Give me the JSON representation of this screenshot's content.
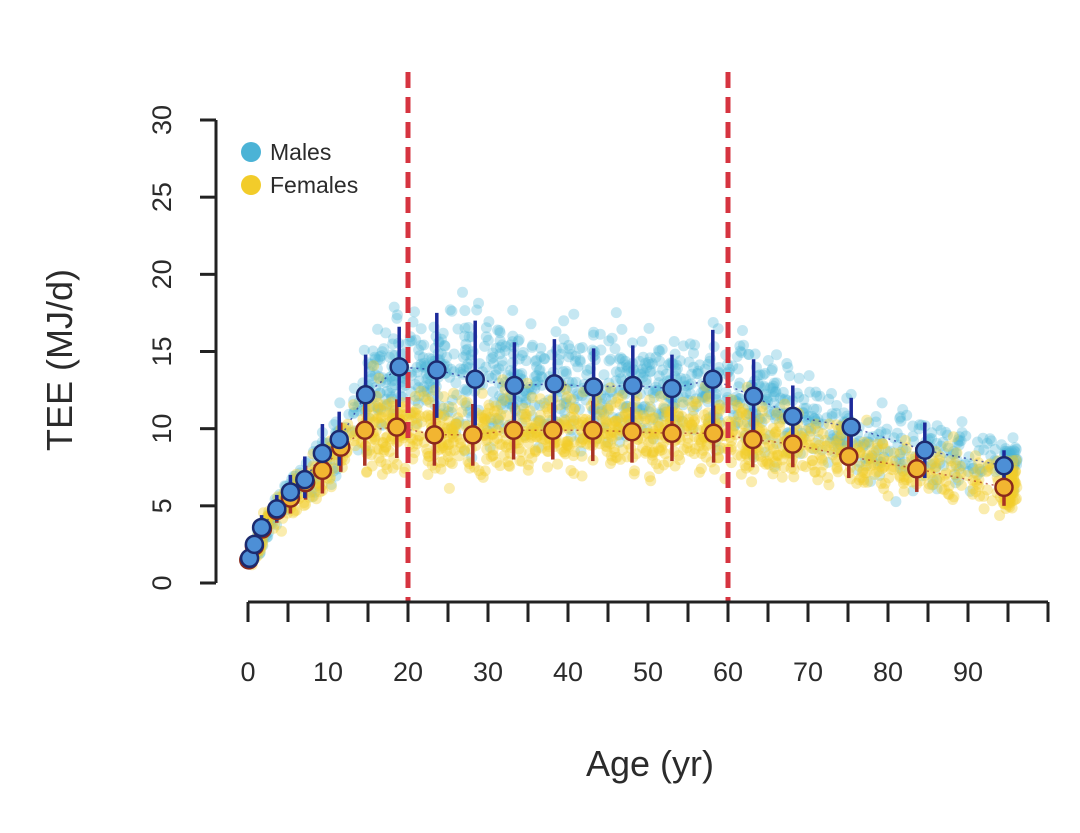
{
  "chart_data": {
    "type": "scatter",
    "xlabel": "Age (yr)",
    "ylabel": "TEE (MJ/d)",
    "xlim": [
      0,
      100
    ],
    "ylim": [
      0,
      30
    ],
    "x_ticks": [
      0,
      10,
      20,
      30,
      40,
      50,
      60,
      70,
      80,
      90
    ],
    "y_ticks": [
      0,
      5,
      10,
      15,
      20,
      25,
      30
    ],
    "x_minor_ticks": [
      0,
      5,
      10,
      15,
      20,
      25,
      30,
      35,
      40,
      45,
      50,
      55,
      60,
      65,
      70,
      75,
      80,
      85,
      90,
      95,
      100
    ],
    "reference_lines": [
      {
        "axis": "x",
        "value": 20,
        "style": "dashed",
        "color": "#d63440"
      },
      {
        "axis": "x",
        "value": 60,
        "style": "dashed",
        "color": "#d63440"
      }
    ],
    "legend": {
      "position": "top-left",
      "entries": [
        {
          "label": "Males",
          "color": "#4bb3d6"
        },
        {
          "label": "Females",
          "color": "#f2cc2a"
        }
      ]
    },
    "series": [
      {
        "name": "Males",
        "color": "#4bb3d6",
        "mean_marker_fill": "#4d8fd6",
        "mean_marker_stroke": "#1c2a6e",
        "errorbar_color": "#1c2a9a",
        "means": [
          {
            "x": 0.2,
            "y": 1.6,
            "low": 1.2,
            "high": 2.0
          },
          {
            "x": 0.8,
            "y": 2.5,
            "low": 2.0,
            "high": 3.0
          },
          {
            "x": 1.7,
            "y": 3.6,
            "low": 3.0,
            "high": 4.4
          },
          {
            "x": 3.6,
            "y": 4.8,
            "low": 4.0,
            "high": 5.7
          },
          {
            "x": 5.3,
            "y": 5.9,
            "low": 4.9,
            "high": 7.0
          },
          {
            "x": 7.1,
            "y": 6.7,
            "low": 5.5,
            "high": 8.2
          },
          {
            "x": 9.3,
            "y": 8.4,
            "low": 6.8,
            "high": 10.3
          },
          {
            "x": 11.4,
            "y": 9.3,
            "low": 7.6,
            "high": 11.1
          },
          {
            "x": 14.7,
            "y": 12.2,
            "low": 9.6,
            "high": 14.8
          },
          {
            "x": 18.9,
            "y": 14.0,
            "low": 11.4,
            "high": 16.6
          },
          {
            "x": 23.6,
            "y": 13.8,
            "low": 10.7,
            "high": 17.5
          },
          {
            "x": 28.4,
            "y": 13.2,
            "low": 10.2,
            "high": 17.0
          },
          {
            "x": 33.3,
            "y": 12.8,
            "low": 10.1,
            "high": 15.6
          },
          {
            "x": 38.3,
            "y": 12.9,
            "low": 10.1,
            "high": 15.8
          },
          {
            "x": 43.2,
            "y": 12.7,
            "low": 10.3,
            "high": 15.2
          },
          {
            "x": 48.1,
            "y": 12.8,
            "low": 10.4,
            "high": 15.4
          },
          {
            "x": 53.0,
            "y": 12.6,
            "low": 10.5,
            "high": 14.8
          },
          {
            "x": 58.1,
            "y": 13.2,
            "low": 10.1,
            "high": 16.4
          },
          {
            "x": 63.2,
            "y": 12.1,
            "low": 9.7,
            "high": 14.5
          },
          {
            "x": 68.1,
            "y": 10.8,
            "low": 8.9,
            "high": 12.8
          },
          {
            "x": 75.4,
            "y": 10.1,
            "low": 8.1,
            "high": 12.0
          },
          {
            "x": 84.6,
            "y": 8.6,
            "low": 6.8,
            "high": 10.4
          },
          {
            "x": 94.5,
            "y": 7.6,
            "low": 6.8,
            "high": 8.6
          }
        ]
      },
      {
        "name": "Females",
        "color": "#f2cc2a",
        "mean_marker_fill": "#f2b531",
        "mean_marker_stroke": "#8a2a1c",
        "errorbar_color": "#a83224",
        "means": [
          {
            "x": 0.1,
            "y": 1.5,
            "low": 1.1,
            "high": 1.9
          },
          {
            "x": 0.8,
            "y": 2.4,
            "low": 1.9,
            "high": 2.9
          },
          {
            "x": 1.8,
            "y": 3.5,
            "low": 2.9,
            "high": 4.2
          },
          {
            "x": 3.6,
            "y": 4.7,
            "low": 3.9,
            "high": 5.5
          },
          {
            "x": 5.3,
            "y": 5.5,
            "low": 4.5,
            "high": 6.4
          },
          {
            "x": 7.2,
            "y": 6.5,
            "low": 5.4,
            "high": 7.6
          },
          {
            "x": 9.3,
            "y": 7.3,
            "low": 5.8,
            "high": 8.8
          },
          {
            "x": 11.6,
            "y": 8.8,
            "low": 7.2,
            "high": 10.4
          },
          {
            "x": 14.6,
            "y": 9.9,
            "low": 7.6,
            "high": 12.0
          },
          {
            "x": 18.6,
            "y": 10.1,
            "low": 8.1,
            "high": 11.9
          },
          {
            "x": 23.3,
            "y": 9.6,
            "low": 7.6,
            "high": 11.6
          },
          {
            "x": 28.1,
            "y": 9.6,
            "low": 7.6,
            "high": 11.6
          },
          {
            "x": 33.2,
            "y": 9.9,
            "low": 8.0,
            "high": 11.7
          },
          {
            "x": 38.1,
            "y": 9.9,
            "low": 8.0,
            "high": 11.7
          },
          {
            "x": 43.1,
            "y": 9.9,
            "low": 7.9,
            "high": 11.8
          },
          {
            "x": 48.0,
            "y": 9.8,
            "low": 7.8,
            "high": 11.4
          },
          {
            "x": 53.0,
            "y": 9.7,
            "low": 7.9,
            "high": 11.4
          },
          {
            "x": 58.2,
            "y": 9.7,
            "low": 7.8,
            "high": 11.5
          },
          {
            "x": 63.1,
            "y": 9.3,
            "low": 7.5,
            "high": 11.1
          },
          {
            "x": 68.1,
            "y": 9.0,
            "low": 7.5,
            "high": 10.5
          },
          {
            "x": 75.1,
            "y": 8.2,
            "low": 6.8,
            "high": 9.7
          },
          {
            "x": 83.6,
            "y": 7.4,
            "low": 5.9,
            "high": 8.8
          },
          {
            "x": 94.5,
            "y": 6.2,
            "low": 5.0,
            "high": 7.5
          }
        ]
      }
    ]
  }
}
